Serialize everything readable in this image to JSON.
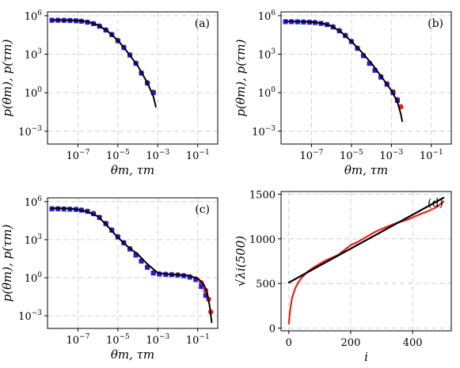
{
  "chart_data": [
    {
      "type": "scatter",
      "panel_label": "(a)",
      "xlabel": "θm, τm",
      "ylabel": "p(θm), p(τm)",
      "xscale": "log",
      "yscale": "log",
      "xlim": [
        3e-09,
        1.0
      ],
      "ylim": [
        0.0001,
        2000000.0
      ],
      "xticks": [
        {
          "v": 1e-07,
          "b": "10",
          "e": "−7"
        },
        {
          "v": 1e-05,
          "b": "10",
          "e": "−5"
        },
        {
          "v": 0.001,
          "b": "10",
          "e": "−3"
        },
        {
          "v": 0.1,
          "b": "10",
          "e": "−1"
        }
      ],
      "yticks": [
        {
          "v": 1000000.0,
          "b": "10",
          "e": "6"
        },
        {
          "v": 1000.0,
          "b": "10",
          "e": "3"
        },
        {
          "v": 1,
          "b": "10",
          "e": "0"
        },
        {
          "v": 0.001,
          "b": "10",
          "e": "−3"
        }
      ],
      "grid": true,
      "series": [
        {
          "kind": "points",
          "marker": "circle",
          "color": "#e8231b",
          "x": [
            5e-09,
            1e-08,
            2e-08,
            4e-08,
            8e-08,
            1.5e-07,
            3e-07,
            6e-07,
            1.2e-06,
            2.5e-06,
            5e-06,
            1e-05,
            2e-05,
            4e-05,
            8e-05,
            0.00015,
            0.0003,
            0.0006
          ],
          "y": [
            450000.0,
            450000.0,
            440000.0,
            430000.0,
            410000.0,
            380000.0,
            320000.0,
            250000.0,
            160000.0,
            80000.0,
            35000.0,
            12000.0,
            3500,
            900,
            200,
            35,
            6,
            1.1
          ]
        },
        {
          "kind": "points",
          "marker": "square",
          "color": "#1f1fd6",
          "x": [
            5e-09,
            1e-08,
            2e-08,
            4e-08,
            8e-08,
            1.5e-07,
            3e-07,
            6e-07,
            1.2e-06,
            2.5e-06,
            5e-06,
            1e-05,
            2e-05,
            4e-05,
            8e-05,
            0.00015,
            0.0003,
            0.0006
          ],
          "y": [
            440000.0,
            440000.0,
            430000.0,
            420000.0,
            400000.0,
            370000.0,
            310000.0,
            240000.0,
            150000.0,
            75000.0,
            33000.0,
            11000.0,
            3200,
            850,
            190,
            33,
            5.5,
            1.0
          ]
        },
        {
          "kind": "line",
          "color": "#000000",
          "x": [
            5e-09,
            1e-08,
            3e-08,
            1e-07,
            3e-07,
            1e-06,
            3e-06,
            1e-05,
            3e-05,
            0.0001,
            0.0003,
            0.0006,
            0.0008
          ],
          "y": [
            460000.0,
            460000.0,
            450000.0,
            420000.0,
            340000.0,
            190000.0,
            65000.0,
            12000.0,
            1500,
            120,
            6,
            0.5,
            0.08
          ]
        }
      ]
    },
    {
      "type": "scatter",
      "panel_label": "(b)",
      "xlabel": "θm, τm",
      "ylabel": "p(θm), p(τm)",
      "xscale": "log",
      "yscale": "log",
      "xlim": [
        3e-09,
        1.0
      ],
      "ylim": [
        0.0001,
        2000000.0
      ],
      "xticks": [
        {
          "v": 1e-07,
          "b": "10",
          "e": "−7"
        },
        {
          "v": 1e-05,
          "b": "10",
          "e": "−5"
        },
        {
          "v": 0.001,
          "b": "10",
          "e": "−3"
        },
        {
          "v": 0.1,
          "b": "10",
          "e": "−1"
        }
      ],
      "yticks": [
        {
          "v": 1000000.0,
          "b": "10",
          "e": "6"
        },
        {
          "v": 1000.0,
          "b": "10",
          "e": "3"
        },
        {
          "v": 1,
          "b": "10",
          "e": "0"
        },
        {
          "v": 0.001,
          "b": "10",
          "e": "−3"
        }
      ],
      "grid": true,
      "series": [
        {
          "kind": "points",
          "marker": "circle",
          "color": "#e8231b",
          "x": [
            5e-09,
            1e-08,
            2e-08,
            4e-08,
            8e-08,
            1.5e-07,
            3e-07,
            6e-07,
            1.2e-06,
            2.5e-06,
            5e-06,
            1e-05,
            2e-05,
            4e-05,
            8e-05,
            0.00015,
            0.0003,
            0.0006,
            0.0012,
            0.002,
            0.003
          ],
          "y": [
            350000.0,
            350000.0,
            340000.0,
            330000.0,
            320000.0,
            300000.0,
            260000.0,
            210000.0,
            140000.0,
            70000.0,
            30000.0,
            10000.0,
            3000,
            800,
            200,
            60,
            18,
            5,
            1.2,
            0.3,
            0.08
          ]
        },
        {
          "kind": "points",
          "marker": "square",
          "color": "#1f1fd6",
          "x": [
            5e-09,
            1e-08,
            2e-08,
            4e-08,
            8e-08,
            1.5e-07,
            3e-07,
            6e-07,
            1.2e-06,
            2.5e-06,
            5e-06,
            1e-05,
            2e-05,
            4e-05,
            8e-05,
            0.00015,
            0.0003,
            0.0006,
            0.0012,
            0.002
          ],
          "y": [
            340000.0,
            340000.0,
            330000.0,
            320000.0,
            310000.0,
            290000.0,
            250000.0,
            200000.0,
            130000.0,
            65000.0,
            28000.0,
            9500,
            2800,
            750,
            190,
            55,
            16,
            4.5,
            1.0,
            0.25
          ]
        },
        {
          "kind": "line",
          "color": "#000000",
          "x": [
            5e-09,
            1e-08,
            3e-08,
            1e-07,
            3e-07,
            1e-06,
            3e-06,
            1e-05,
            3e-05,
            0.0001,
            0.0003,
            0.001,
            0.002,
            0.003,
            0.0035
          ],
          "y": [
            360000.0,
            360000.0,
            350000.0,
            320000.0,
            270000.0,
            160000.0,
            55000.0,
            10000.0,
            1700,
            200,
            20,
            1.5,
            0.2,
            0.02,
            0.006
          ]
        }
      ]
    },
    {
      "type": "scatter",
      "panel_label": "(c)",
      "xlabel": "θm, τm",
      "ylabel": "p(θm), p(τm)",
      "xscale": "log",
      "yscale": "log",
      "xlim": [
        3e-09,
        1.0
      ],
      "ylim": [
        0.0001,
        2000000.0
      ],
      "xticks": [
        {
          "v": 1e-07,
          "b": "10",
          "e": "−7"
        },
        {
          "v": 1e-05,
          "b": "10",
          "e": "−5"
        },
        {
          "v": 0.001,
          "b": "10",
          "e": "−3"
        },
        {
          "v": 0.1,
          "b": "10",
          "e": "−1"
        }
      ],
      "yticks": [
        {
          "v": 1000000.0,
          "b": "10",
          "e": "6"
        },
        {
          "v": 1000.0,
          "b": "10",
          "e": "3"
        },
        {
          "v": 1,
          "b": "10",
          "e": "0"
        },
        {
          "v": 0.001,
          "b": "10",
          "e": "−3"
        }
      ],
      "grid": true,
      "series": [
        {
          "kind": "points",
          "marker": "circle",
          "color": "#e8231b",
          "x": [
            5e-09,
            1e-08,
            2e-08,
            4e-08,
            8e-08,
            1.5e-07,
            3e-07,
            6e-07,
            1.2e-06,
            2.5e-06,
            5e-06,
            1e-05,
            2e-05,
            4e-05,
            8e-05,
            0.00015,
            0.0003,
            0.0006,
            0.0012,
            0.0025,
            0.005,
            0.01,
            0.02,
            0.04,
            0.08,
            0.15,
            0.25,
            0.35,
            0.45
          ],
          "y": [
            280000.0,
            280000.0,
            270000.0,
            260000.0,
            250000.0,
            220000.0,
            180000.0,
            120000.0,
            60000.0,
            20000.0,
            6000,
            1800,
            600,
            200,
            70,
            22,
            7,
            2.5,
            2,
            1.9,
            1.8,
            1.7,
            1.5,
            1.2,
            0.8,
            0.4,
            0.1,
            0.02,
            0.002
          ]
        },
        {
          "kind": "points",
          "marker": "square",
          "color": "#1f1fd6",
          "x": [
            5e-09,
            1e-08,
            2e-08,
            4e-08,
            8e-08,
            1.5e-07,
            3e-07,
            6e-07,
            1.2e-06,
            2.5e-06,
            5e-06,
            1e-05,
            2e-05,
            4e-05,
            8e-05,
            0.00015,
            0.0003,
            0.0006,
            0.0012,
            0.0025,
            0.005,
            0.01,
            0.02,
            0.04,
            0.08,
            0.15,
            0.25
          ],
          "y": [
            270000.0,
            270000.0,
            260000.0,
            250000.0,
            240000.0,
            210000.0,
            170000.0,
            110000.0,
            55000.0,
            18000.0,
            5500,
            1600,
            550,
            180,
            60,
            20,
            6.5,
            2.3,
            1.9,
            1.8,
            1.7,
            1.6,
            1.4,
            1.1,
            0.7,
            0.2,
            0.04
          ]
        },
        {
          "kind": "line",
          "color": "#000000",
          "x": [
            5e-09,
            1e-08,
            3e-08,
            1e-07,
            3e-07,
            1e-06,
            3e-06,
            1e-05,
            3e-05,
            0.0001,
            0.0003,
            0.001,
            0.003,
            0.01,
            0.03,
            0.1,
            0.2,
            0.3,
            0.4,
            0.5
          ],
          "y": [
            300000.0,
            300000.0,
            290000.0,
            240000.0,
            160000.0,
            70000.0,
            12000.0,
            1500,
            300,
            70,
            12,
            2.4,
            1.9,
            1.7,
            1.5,
            0.9,
            0.3,
            0.06,
            0.005,
            0.0003
          ]
        }
      ]
    },
    {
      "type": "line",
      "panel_label": "(d)",
      "xlabel": "i",
      "ylabel": "√λi(500)",
      "xscale": "linear",
      "yscale": "linear",
      "xlim": [
        -25,
        525
      ],
      "ylim": [
        -30,
        1530
      ],
      "xticks": [
        {
          "v": 0,
          "b": "0"
        },
        {
          "v": 200,
          "b": "200"
        },
        {
          "v": 400,
          "b": "400"
        }
      ],
      "yticks": [
        {
          "v": 0,
          "b": "0"
        },
        {
          "v": 500,
          "b": "500"
        },
        {
          "v": 1000,
          "b": "1000"
        },
        {
          "v": 1500,
          "b": "1500"
        }
      ],
      "grid": true,
      "series": [
        {
          "kind": "line",
          "color": "#e8231b",
          "width": 2.2,
          "x": [
            0,
            2,
            5,
            10,
            20,
            30,
            40,
            60,
            80,
            100,
            120,
            140,
            160,
            170,
            180,
            200,
            220,
            250,
            280,
            300,
            320,
            350,
            380,
            400,
            420,
            450,
            480,
            500
          ],
          "y": [
            50,
            120,
            220,
            330,
            440,
            510,
            560,
            630,
            680,
            720,
            760,
            790,
            820,
            850,
            875,
            930,
            960,
            1020,
            1080,
            1110,
            1140,
            1180,
            1210,
            1240,
            1270,
            1310,
            1360,
            1420
          ]
        },
        {
          "kind": "line",
          "color": "#000000",
          "width": 2.2,
          "x": [
            0,
            500
          ],
          "y": [
            510,
            1460
          ]
        }
      ]
    }
  ]
}
